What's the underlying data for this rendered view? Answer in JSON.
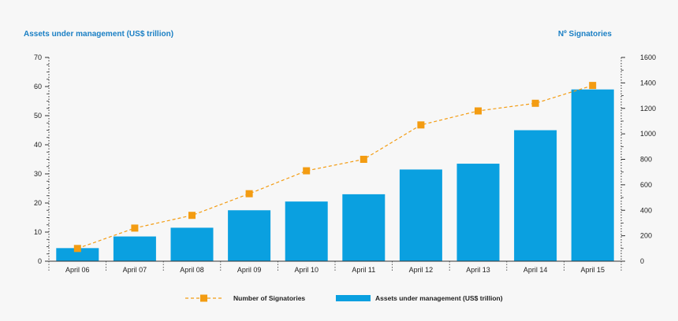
{
  "chart_data": {
    "type": "bar",
    "categories": [
      "April 06",
      "April 07",
      "April 08",
      "April 09",
      "April 10",
      "April 11",
      "April 12",
      "April 13",
      "April 14",
      "April 15"
    ],
    "y_left": {
      "label": "Assets under management (US$ trillion)",
      "range": [
        0,
        70
      ],
      "ticks": [
        0,
        10,
        20,
        30,
        40,
        50,
        60,
        70
      ]
    },
    "y_right": {
      "label": "Nº Signatories",
      "range": [
        0,
        1600
      ],
      "ticks": [
        0,
        200,
        400,
        600,
        800,
        1000,
        1200,
        1400,
        1600
      ]
    },
    "series": [
      {
        "name": "Assets under management (US$ trillion)",
        "type": "bar",
        "axis": "left",
        "color": "#0aa0e0",
        "values": [
          4.5,
          8.5,
          11.5,
          17.5,
          20.5,
          23,
          31.5,
          33.5,
          45,
          59
        ]
      },
      {
        "name": "Number of Signatories",
        "type": "line",
        "axis": "right",
        "color": "#f39c12",
        "style": "dashed",
        "values": [
          100,
          260,
          360,
          530,
          710,
          800,
          1070,
          1180,
          1240,
          1380
        ]
      }
    ],
    "legend": {
      "position": "bottom-center",
      "items": [
        "Number of Signatories",
        "Assets under management (US$ trillion)"
      ]
    },
    "grid": false
  }
}
